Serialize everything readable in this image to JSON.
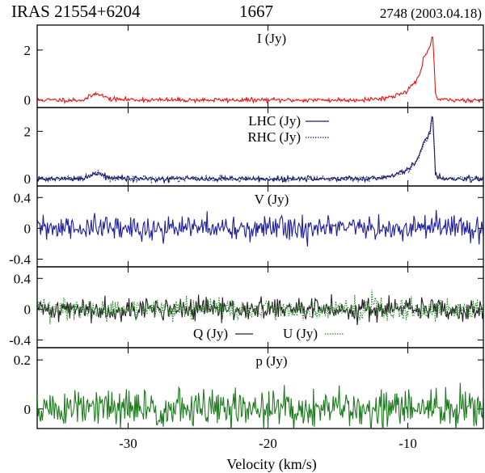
{
  "header": {
    "source": "IRAS 21554+6204",
    "frequency": "1667",
    "epoch": "2748 (2003.04.18)"
  },
  "colors": {
    "stokes_i": "#ee1111",
    "circular": "#1a1a6e",
    "stokes_v": "#1f1fa0",
    "stokes_q": "#222222",
    "stokes_u": "#2a8a2a",
    "pol_p": "#1e7a1e"
  },
  "chart_data": {
    "type": "line",
    "xlabel": "Velocity (km/s)",
    "xlim": [
      -36.5,
      -4.6
    ],
    "xticks": [
      -30,
      -20,
      -10
    ],
    "xtick_labels": [
      "-30",
      "-20",
      "-10"
    ],
    "panels": [
      {
        "id": "I",
        "ylim": [
          -0.3,
          3.0
        ],
        "yticks": [
          0,
          2
        ],
        "ytick_labels": [
          "0",
          "2"
        ],
        "series": [
          {
            "name": "I (Jy)",
            "style": "solid",
            "noise": 0.05,
            "seed": 11,
            "points": [
              [
                -36.5,
                0.0
              ],
              [
                -33.2,
                0.0
              ],
              [
                -32.5,
                0.2
              ],
              [
                -32.2,
                0.3
              ],
              [
                -31.8,
                0.15
              ],
              [
                -31.2,
                0.03
              ],
              [
                -28,
                0.0
              ],
              [
                -20,
                0.0
              ],
              [
                -14,
                0.0
              ],
              [
                -12,
                0.05
              ],
              [
                -11,
                0.15
              ],
              [
                -10,
                0.4
              ],
              [
                -9.5,
                0.7
              ],
              [
                -9.1,
                1.1
              ],
              [
                -8.9,
                1.6
              ],
              [
                -8.6,
                1.9
              ],
              [
                -8.4,
                2.1
              ],
              [
                -8.3,
                2.55
              ],
              [
                -8.2,
                2.5
              ],
              [
                -8.1,
                1.2
              ],
              [
                -8.05,
                0.3
              ],
              [
                -7.9,
                0.05
              ],
              [
                -7.5,
                0.0
              ],
              [
                -4.6,
                0.0
              ]
            ]
          }
        ]
      },
      {
        "id": "LR",
        "ylim": [
          -0.3,
          3.0
        ],
        "yticks": [
          0,
          2
        ],
        "ytick_labels": [
          "0",
          "2"
        ],
        "series": [
          {
            "name": "LHC (Jy)",
            "style": "solid",
            "noise": 0.06,
            "seed": 21,
            "points": [
              [
                -36.5,
                0.0
              ],
              [
                -33.2,
                0.0
              ],
              [
                -32.5,
                0.2
              ],
              [
                -32.2,
                0.3
              ],
              [
                -31.8,
                0.15
              ],
              [
                -31.2,
                0.03
              ],
              [
                -28,
                0.0
              ],
              [
                -20,
                0.0
              ],
              [
                -14,
                0.0
              ],
              [
                -12,
                0.05
              ],
              [
                -11,
                0.15
              ],
              [
                -10,
                0.4
              ],
              [
                -9.5,
                0.7
              ],
              [
                -9.1,
                1.1
              ],
              [
                -8.9,
                1.5
              ],
              [
                -8.6,
                1.8
              ],
              [
                -8.4,
                2.0
              ],
              [
                -8.3,
                2.65
              ],
              [
                -8.2,
                2.5
              ],
              [
                -8.1,
                1.2
              ],
              [
                -8.05,
                0.3
              ],
              [
                -7.9,
                0.05
              ],
              [
                -7.5,
                0.0
              ],
              [
                -4.6,
                0.0
              ]
            ]
          },
          {
            "name": "RHC (Jy)",
            "style": "dotted",
            "noise": 0.06,
            "seed": 22,
            "points": [
              [
                -36.5,
                0.0
              ],
              [
                -33.2,
                0.0
              ],
              [
                -32.5,
                0.2
              ],
              [
                -32.2,
                0.3
              ],
              [
                -31.8,
                0.15
              ],
              [
                -31.2,
                0.03
              ],
              [
                -28,
                0.0
              ],
              [
                -20,
                0.0
              ],
              [
                -14,
                0.0
              ],
              [
                -12,
                0.05
              ],
              [
                -11,
                0.15
              ],
              [
                -10,
                0.35
              ],
              [
                -9.5,
                0.6
              ],
              [
                -9.1,
                1.0
              ],
              [
                -8.9,
                1.4
              ],
              [
                -8.6,
                1.7
              ],
              [
                -8.4,
                1.9
              ],
              [
                -8.3,
                2.5
              ],
              [
                -8.2,
                2.4
              ],
              [
                -8.1,
                1.1
              ],
              [
                -8.05,
                0.3
              ],
              [
                -7.9,
                0.05
              ],
              [
                -7.5,
                0.0
              ],
              [
                -4.6,
                0.0
              ]
            ]
          }
        ]
      },
      {
        "id": "V",
        "ylim": [
          -0.5,
          0.55
        ],
        "yticks": [
          0.4,
          0,
          -0.4
        ],
        "ytick_labels": [
          "0.4",
          "0",
          "-0.4"
        ],
        "series": [
          {
            "name": "V (Jy)",
            "style": "solid",
            "noise": 0.09,
            "seed": 31,
            "points": [
              [
                -36.5,
                0.0
              ],
              [
                -4.6,
                0.0
              ]
            ]
          }
        ]
      },
      {
        "id": "QU",
        "ylim": [
          -0.5,
          0.55
        ],
        "yticks": [
          0.4,
          0,
          -0.4
        ],
        "ytick_labels": [
          "0.4",
          "0",
          "-0.4"
        ],
        "series": [
          {
            "name": "Q (Jy)",
            "style": "solid",
            "noise": 0.08,
            "seed": 41,
            "points": [
              [
                -36.5,
                0.0
              ],
              [
                -4.6,
                0.0
              ]
            ]
          },
          {
            "name": "U (Jy)",
            "style": "dotted",
            "noise": 0.08,
            "seed": 42,
            "points": [
              [
                -36.5,
                0.0
              ],
              [
                -4.6,
                0.0
              ]
            ]
          }
        ]
      },
      {
        "id": "p",
        "ylim": [
          -0.08,
          0.25
        ],
        "yticks": [
          0.2,
          0
        ],
        "ytick_labels": [
          "0.2",
          "0"
        ],
        "series": [
          {
            "name": "p (Jy)",
            "style": "solid",
            "noise": 0.045,
            "seed": 51,
            "points": [
              [
                -36.5,
                0.0
              ],
              [
                -4.6,
                0.0
              ]
            ]
          }
        ]
      }
    ]
  }
}
